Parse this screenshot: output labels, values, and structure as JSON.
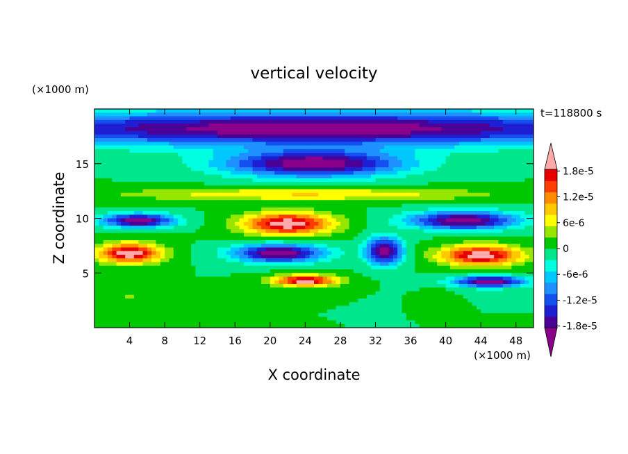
{
  "chart_data": {
    "type": "heatmap",
    "title": "vertical velocity",
    "time_label": "t=118800 s",
    "xlabel": "X coordinate",
    "ylabel": "Z coordinate",
    "x_unit": "(×1000 m)",
    "y_unit": "(×1000 m)",
    "xlim": [
      0,
      50
    ],
    "ylim": [
      0,
      20
    ],
    "x_ticks": [
      4,
      8,
      12,
      16,
      20,
      24,
      28,
      32,
      36,
      40,
      44,
      48
    ],
    "y_ticks": [
      5,
      10,
      15
    ],
    "colorbar": {
      "tick_labels": [
        "1.8e-5",
        "1.2e-5",
        "6e-6",
        "0",
        "-6e-6",
        "-1.2e-5",
        "-1.8e-5"
      ],
      "tick_values": [
        1.8e-05,
        1.2e-05,
        6e-06,
        0,
        -6e-06,
        -1.2e-05,
        -1.8e-05
      ],
      "range": [
        -2.1e-05,
        2.1e-05
      ],
      "colors": [
        "#8b008b",
        "#4b0096",
        "#1e1ed2",
        "#1450f0",
        "#1e90ff",
        "#00c8ff",
        "#00ffe0",
        "#00e68c",
        "#00c800",
        "#96e600",
        "#ffff00",
        "#ffc800",
        "#ff8c00",
        "#ff3c00",
        "#e60000",
        "#ffaaaa"
      ]
    },
    "features": [
      {
        "x": 25,
        "z": 18.2,
        "value": -2.1e-05,
        "sx": 40,
        "sz": 1.5
      },
      {
        "x": 25,
        "z": 15,
        "value": -2.1e-05,
        "sx": 10,
        "sz": 1.2
      },
      {
        "x": 22,
        "z": 9.5,
        "value": 2.1e-05,
        "sx": 5,
        "sz": 1.0
      },
      {
        "x": 4,
        "z": 6.8,
        "value": 2.1e-05,
        "sx": 3.5,
        "sz": 0.9
      },
      {
        "x": 44,
        "z": 6.6,
        "value": 2.1e-05,
        "sx": 4.5,
        "sz": 0.9
      },
      {
        "x": 24,
        "z": 4.3,
        "value": 2.1e-05,
        "sx": 3.5,
        "sz": 0.5
      },
      {
        "x": 21,
        "z": 6.8,
        "value": -2.1e-05,
        "sx": 5,
        "sz": 0.8
      },
      {
        "x": 5,
        "z": 9.8,
        "value": -2.1e-05,
        "sx": 4,
        "sz": 0.6
      },
      {
        "x": 42,
        "z": 9.8,
        "value": -2.1e-05,
        "sx": 6,
        "sz": 0.8
      },
      {
        "x": 33,
        "z": 7,
        "value": -2.1e-05,
        "sx": 2,
        "sz": 1.2
      },
      {
        "x": 45,
        "z": 4.2,
        "value": -2.1e-05,
        "sx": 4,
        "sz": 0.5
      },
      {
        "x": 24,
        "z": 12.2,
        "value": 8e-06,
        "sx": 20,
        "sz": 0.6
      },
      {
        "x": 4,
        "z": 2.8,
        "value": 3e-06,
        "sx": 1.5,
        "sz": 0.5
      },
      {
        "x": 39,
        "z": 3,
        "value": 3e-06,
        "sx": 1.2,
        "sz": 0.5
      }
    ]
  }
}
